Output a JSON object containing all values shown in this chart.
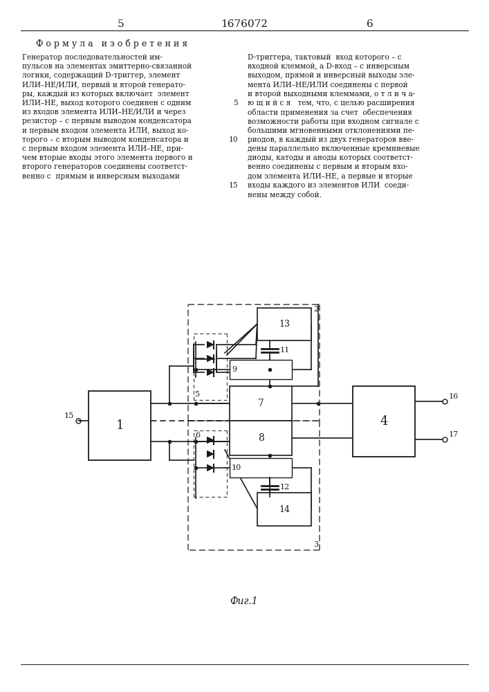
{
  "title": "1676072",
  "page_left": "5",
  "page_right": "6",
  "formula_title": "Ф о р м у л а   и з о б р е т е н и я",
  "left_lines": [
    "Генератор последовательностей им-",
    "пульсов на элементах эмиттерно-связанной",
    "логики, содержащий D-триггер, элемент",
    "ИЛИ–НЕ/ИЛИ, первый и второй генерато-",
    "ры, каждый из которых включает  элемент",
    "ИЛИ–НЕ, выход которого соединен с одним",
    "из входов элемента ИЛИ–НЕ/ИЛИ и через",
    "резистор – с первым выводом конденсатора",
    "и первым входом элемента ИЛИ, выход ко-",
    "торого – с вторым выводом конденсатора и",
    "с первым входом элемента ИЛИ–НЕ, при-",
    "чем вторые входы этого элемента первого и",
    "второго генераторов соединены соответст-",
    "венно с  прямым и инверсным выходами"
  ],
  "right_lines": [
    "D-триггера, тактовый  вход которого – с",
    "входной клеммой, а D-вход – с инверсным",
    "выходом, прямой и инверсный выходы эле-",
    "мента ИЛИ–НЕ/ИЛИ соединены с первой",
    "и второй выходными клеммами, о т л и ч а-",
    "ю щ и й с я   тем, что, с целью расширения",
    "области применения за счет  обеспечения",
    "возможности работы при входном сигнале с",
    "большими мгновенными отклонениями пе-",
    "риодов, в каждый из двух генераторов вве-",
    "дены параллельно включенные кремниевые",
    "диоды, катоды и аноды которых соответст-",
    "венно соединены с первым и вторым вхо-",
    "дом элемента ИЛИ–НЕ, а первые и вторые",
    "входы каждого из элементов ИЛИ  соеди-",
    "нены между собой."
  ],
  "right_line_numbers": [
    null,
    null,
    null,
    null,
    null,
    5,
    null,
    null,
    null,
    10,
    null,
    null,
    null,
    null,
    15,
    null
  ],
  "fig_caption": "Фиг.1",
  "background": "#ffffff",
  "line_color": "#1a1a1a",
  "dashed_color": "#444444"
}
